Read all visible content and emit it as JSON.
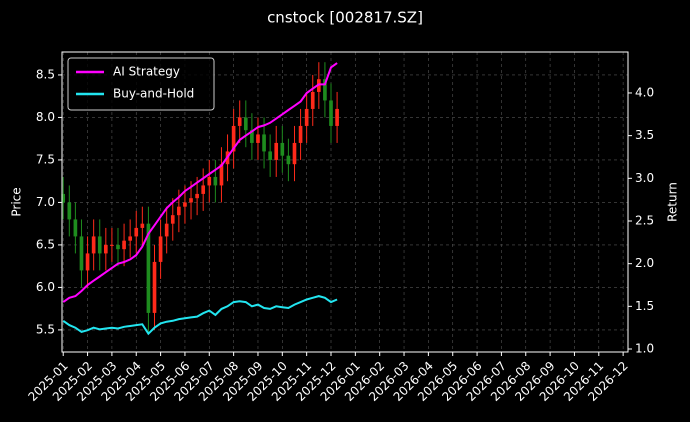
{
  "chart_data": {
    "type": "candlestick",
    "title": "cnstock [002817.SZ]",
    "ylabel": "Price",
    "y2label": "Return",
    "x": [
      0,
      0.25,
      0.5,
      0.75,
      1,
      1.25,
      1.5,
      1.75,
      2,
      2.25,
      2.5,
      2.75,
      3,
      3.25,
      3.5,
      3.75,
      4,
      4.25,
      4.5,
      4.75,
      5,
      5.25,
      5.5,
      5.75,
      6,
      6.25,
      6.5,
      6.75,
      7,
      7.25,
      7.5,
      7.75,
      8,
      8.25,
      8.5,
      8.75,
      9,
      9.25,
      9.5,
      9.75,
      10,
      10.25,
      10.5,
      10.75,
      11,
      11.25
    ],
    "candles": {
      "up_color": "#ff2a1a",
      "down_color": "#1e8c1e",
      "open": [
        7.1,
        7.0,
        6.8,
        6.6,
        6.2,
        6.4,
        6.6,
        6.4,
        6.5,
        6.5,
        6.45,
        6.55,
        6.6,
        6.7,
        6.75,
        5.7,
        6.3,
        6.6,
        6.75,
        6.85,
        6.95,
        7.0,
        7.05,
        7.1,
        7.2,
        7.3,
        7.2,
        7.45,
        7.6,
        7.9,
        8.0,
        7.85,
        7.7,
        7.8,
        7.6,
        7.5,
        7.7,
        7.55,
        7.45,
        7.7,
        7.9,
        8.1,
        8.3,
        8.45,
        8.2,
        7.9
      ],
      "high": [
        7.3,
        7.2,
        7.0,
        6.8,
        6.6,
        6.8,
        6.8,
        6.7,
        6.7,
        6.7,
        6.75,
        6.8,
        6.9,
        6.95,
        6.95,
        6.5,
        6.8,
        6.95,
        7.05,
        7.15,
        7.2,
        7.25,
        7.3,
        7.4,
        7.5,
        7.5,
        7.65,
        7.8,
        8.1,
        8.2,
        8.2,
        8.05,
        8.0,
        8.0,
        7.8,
        7.9,
        7.9,
        7.75,
        7.9,
        8.1,
        8.3,
        8.5,
        8.65,
        8.65,
        8.4,
        8.3
      ],
      "low": [
        6.8,
        6.6,
        6.4,
        6.0,
        6.0,
        6.2,
        6.2,
        6.2,
        6.3,
        6.25,
        6.25,
        6.35,
        6.4,
        6.5,
        5.45,
        5.5,
        6.1,
        6.4,
        6.55,
        6.65,
        6.75,
        6.8,
        6.85,
        6.9,
        7.0,
        7.0,
        7.0,
        7.25,
        7.4,
        7.7,
        7.65,
        7.5,
        7.5,
        7.4,
        7.3,
        7.3,
        7.35,
        7.25,
        7.25,
        7.5,
        7.7,
        7.9,
        8.1,
        8.0,
        7.7,
        7.7
      ],
      "close": [
        7.0,
        6.8,
        6.6,
        6.2,
        6.4,
        6.6,
        6.4,
        6.5,
        6.5,
        6.45,
        6.55,
        6.6,
        6.7,
        6.75,
        5.7,
        6.3,
        6.6,
        6.75,
        6.85,
        6.95,
        7.0,
        7.05,
        7.1,
        7.2,
        7.3,
        7.2,
        7.45,
        7.6,
        7.9,
        8.0,
        7.85,
        7.7,
        7.8,
        7.6,
        7.5,
        7.7,
        7.55,
        7.45,
        7.7,
        7.9,
        8.1,
        8.3,
        8.45,
        8.2,
        7.9,
        8.1
      ]
    },
    "series": [
      {
        "name": "AI Strategy",
        "color": "#ff00ff",
        "axis": "y2",
        "values": [
          1.55,
          1.6,
          1.62,
          1.68,
          1.75,
          1.8,
          1.85,
          1.9,
          1.95,
          2.0,
          2.02,
          2.05,
          2.1,
          2.2,
          2.35,
          2.45,
          2.55,
          2.65,
          2.72,
          2.78,
          2.85,
          2.9,
          2.95,
          3.0,
          3.05,
          3.1,
          3.15,
          3.25,
          3.35,
          3.45,
          3.5,
          3.55,
          3.6,
          3.62,
          3.65,
          3.7,
          3.75,
          3.8,
          3.85,
          3.9,
          4.0,
          4.05,
          4.1,
          4.1,
          4.3,
          4.35
        ]
      },
      {
        "name": "Buy-and-Hold",
        "color": "#22e5f0",
        "axis": "y2",
        "values": [
          1.33,
          1.28,
          1.25,
          1.2,
          1.22,
          1.25,
          1.23,
          1.24,
          1.25,
          1.24,
          1.26,
          1.27,
          1.28,
          1.29,
          1.18,
          1.25,
          1.3,
          1.32,
          1.33,
          1.35,
          1.36,
          1.37,
          1.38,
          1.42,
          1.45,
          1.4,
          1.47,
          1.5,
          1.55,
          1.56,
          1.55,
          1.5,
          1.52,
          1.48,
          1.47,
          1.5,
          1.49,
          1.48,
          1.52,
          1.55,
          1.58,
          1.6,
          1.62,
          1.6,
          1.55,
          1.58
        ]
      }
    ],
    "xlim": [
      -0.05,
      23.2
    ],
    "xticks": [
      {
        "value": 0,
        "label": "2025-01"
      },
      {
        "value": 1,
        "label": "2025-02"
      },
      {
        "value": 2,
        "label": "2025-03"
      },
      {
        "value": 3,
        "label": "2025-04"
      },
      {
        "value": 4,
        "label": "2025-05"
      },
      {
        "value": 5,
        "label": "2025-06"
      },
      {
        "value": 6,
        "label": "2025-07"
      },
      {
        "value": 7,
        "label": "2025-08"
      },
      {
        "value": 8,
        "label": "2025-09"
      },
      {
        "value": 9,
        "label": "2025-10"
      },
      {
        "value": 10,
        "label": "2025-11"
      },
      {
        "value": 11,
        "label": "2025-12"
      },
      {
        "value": 12,
        "label": "2026-01"
      },
      {
        "value": 13,
        "label": "2026-02"
      },
      {
        "value": 14,
        "label": "2026-03"
      },
      {
        "value": 15,
        "label": "2026-04"
      },
      {
        "value": 16,
        "label": "2026-05"
      },
      {
        "value": 17,
        "label": "2026-06"
      },
      {
        "value": 18,
        "label": "2026-07"
      },
      {
        "value": 19,
        "label": "2026-08"
      },
      {
        "value": 20,
        "label": "2026-09"
      },
      {
        "value": 21,
        "label": "2026-10"
      },
      {
        "value": 22,
        "label": "2026-11"
      },
      {
        "value": 23,
        "label": "2026-12"
      }
    ],
    "ylim": [
      5.24,
      8.77
    ],
    "yticks": [
      5.5,
      6.0,
      6.5,
      7.0,
      7.5,
      8.0,
      8.5
    ],
    "y2lim": [
      0.965,
      4.48
    ],
    "y2ticks": [
      1.0,
      1.5,
      2.0,
      2.5,
      3.0,
      3.5,
      4.0
    ],
    "grid": true,
    "legend": "upper-left"
  }
}
